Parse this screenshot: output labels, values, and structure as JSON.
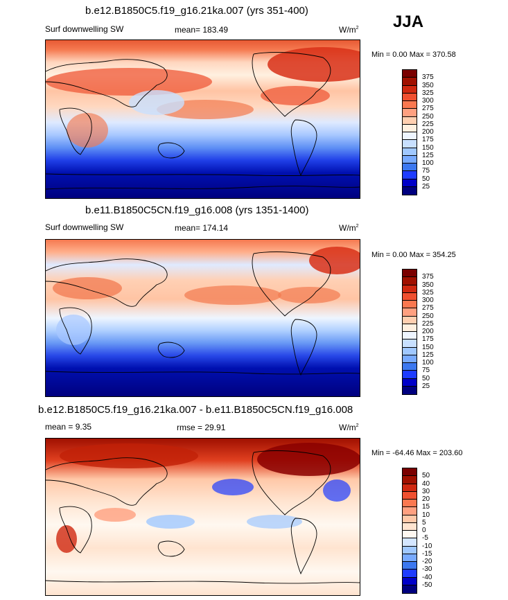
{
  "season": "JJA",
  "colors": {
    "full": [
      "#00007f",
      "#0000c8",
      "#1e3cff",
      "#3c78f0",
      "#78aaff",
      "#a0c8ff",
      "#c8e0ff",
      "#eef5ff",
      "#fff0e0",
      "#ffcfb0",
      "#ffa080",
      "#fa7850",
      "#f05030",
      "#d02810",
      "#a01000",
      "#7a0000"
    ],
    "diff": [
      "#00007f",
      "#0000c8",
      "#1e3cff",
      "#3c78f0",
      "#78aaff",
      "#a0c8ff",
      "#d4e6ff",
      "#fff8f0",
      "#ffe4d0",
      "#ffc8a8",
      "#ffa080",
      "#fa7850",
      "#f05030",
      "#d02810",
      "#a01000",
      "#7a0000"
    ]
  },
  "panels": [
    {
      "id": "panel-top",
      "title": "b.e12.B1850C5.f19_g16.21ka.007 (yrs 351-400)",
      "left_label": "Surf downwelling SW",
      "center_label": "mean= 183.49",
      "units": "W/m",
      "units_sup": "2",
      "minmax": "Min =   0.00 Max = 370.58",
      "colorbar": {
        "labels": [
          "375",
          "350",
          "325",
          "300",
          "275",
          "250",
          "225",
          "200",
          "175",
          "150",
          "125",
          "100",
          "75",
          "50",
          "25"
        ]
      }
    },
    {
      "id": "panel-middle",
      "title": "b.e11.B1850C5CN.f19_g16.008 (yrs 1351-1400)",
      "left_label": "Surf downwelling SW",
      "center_label": "mean= 174.14",
      "units": "W/m",
      "units_sup": "2",
      "minmax": "Min =   0.00 Max = 354.25",
      "colorbar": {
        "labels": [
          "375",
          "350",
          "325",
          "300",
          "275",
          "250",
          "225",
          "200",
          "175",
          "150",
          "125",
          "100",
          "75",
          "50",
          "25"
        ]
      }
    },
    {
      "id": "panel-bottom",
      "title": "b.e12.B1850C5.f19_g16.21ka.007 - b.e11.B1850C5CN.f19_g16.008",
      "left_label": "mean =   9.35",
      "center_label": "rmse =  29.91",
      "units": "W/m",
      "units_sup": "2",
      "minmax": "Min = -64.46 Max = 203.60",
      "colorbar": {
        "labels": [
          "50",
          "40",
          "30",
          "20",
          "15",
          "10",
          "5",
          "0",
          "-5",
          "-10",
          "-15",
          "-20",
          "-30",
          "-40",
          "-50"
        ]
      }
    }
  ]
}
